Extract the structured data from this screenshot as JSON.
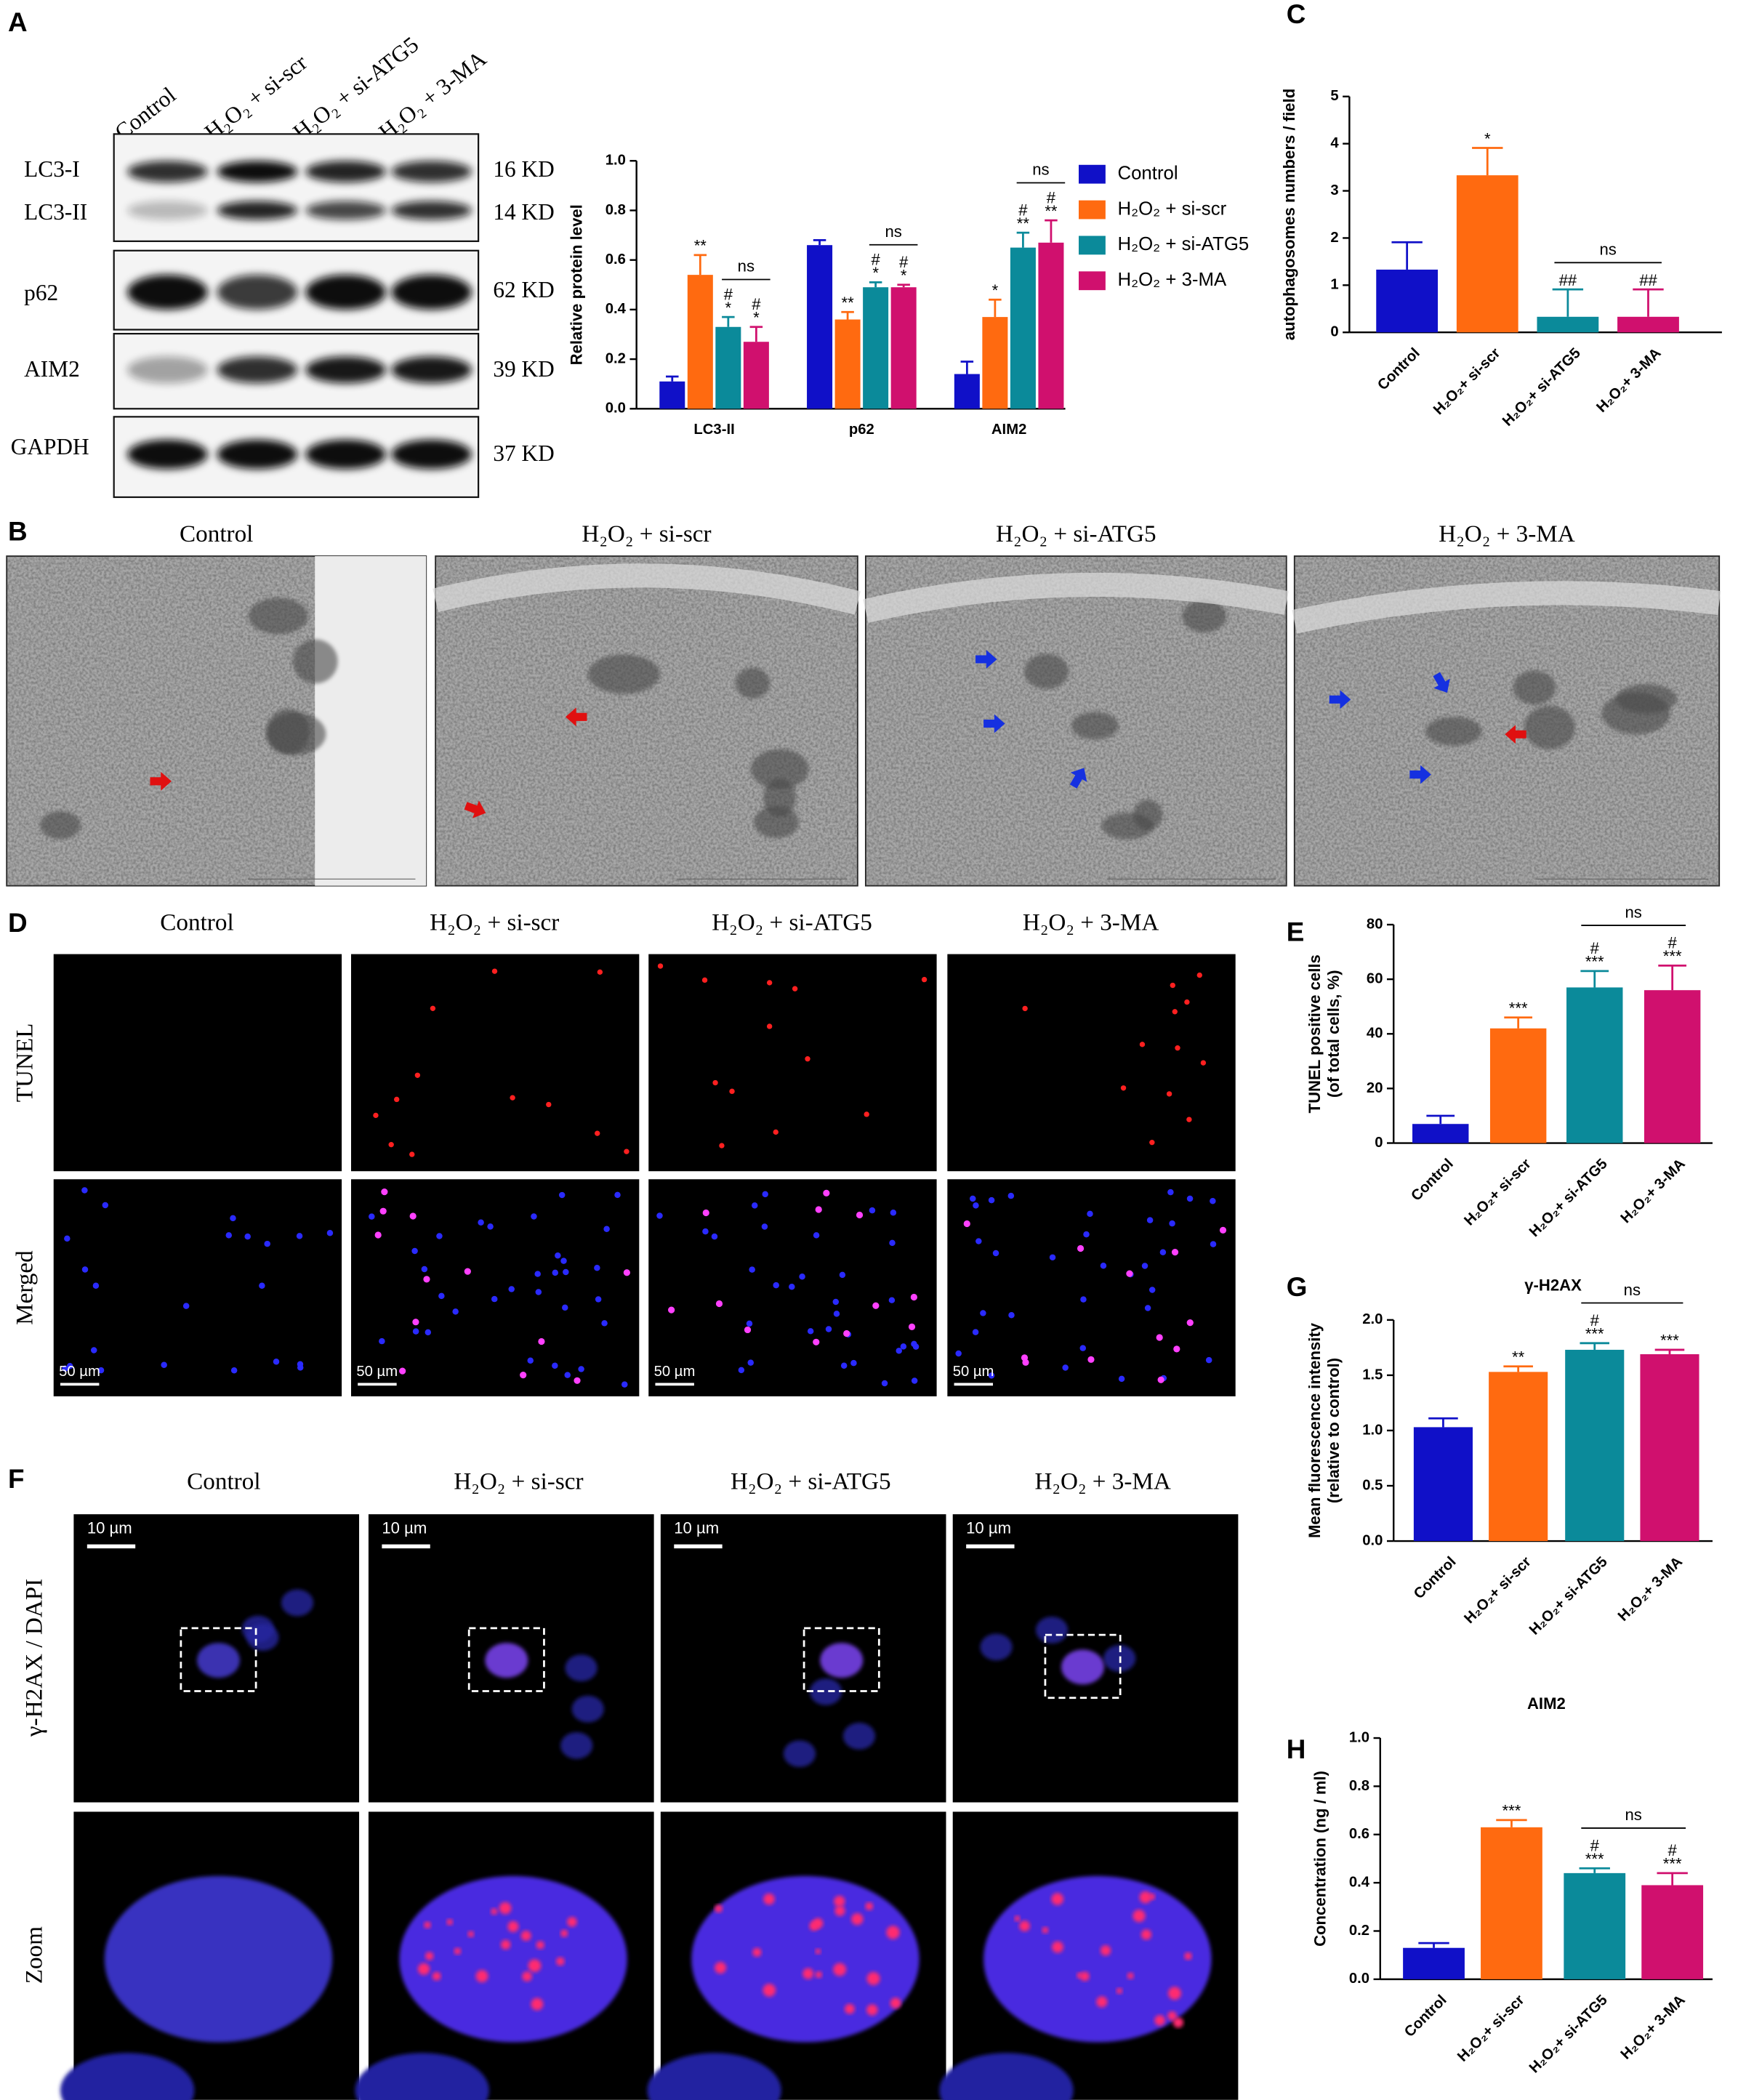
{
  "panels": {
    "A": {
      "letter": "A",
      "lanes": [
        "Control",
        "H₂O₂ + si-scr",
        "H₂O₂ + si-ATG5",
        "H₂O₂ + 3-MA"
      ],
      "proteins": [
        "LC3-I",
        "LC3-II",
        "p62",
        "AIM2",
        "GAPDH"
      ],
      "sizes": [
        "16 KD",
        "14 KD",
        "62 KD",
        "39 KD",
        "37 KD"
      ]
    },
    "B": {
      "letter": "B",
      "titles": [
        "Control",
        "H₂O₂ + si-scr",
        "H₂O₂ + si-ATG5",
        "H₂O₂ + 3-MA"
      ]
    },
    "D": {
      "letter": "D",
      "titles": [
        "Control",
        "H₂O₂ + si-scr",
        "H₂O₂ + si-ATG5",
        "H₂O₂ + 3-MA"
      ],
      "rows": [
        "TUNEL",
        "Merged"
      ],
      "scale_bar": "50 µm"
    },
    "F": {
      "letter": "F",
      "titles": [
        "Control",
        "H₂O₂ + si-scr",
        "H₂O₂ + si-ATG5",
        "H₂O₂ + 3-MA"
      ],
      "rows": [
        "γ-H2AX / DAPI",
        "Zoom"
      ],
      "scale_bar": "10 µm"
    }
  },
  "chart_data": [
    {
      "type": "grouped_bar",
      "ylabel": "Relative protein level",
      "categories": [
        "LC3-II",
        "p62",
        "AIM2"
      ],
      "series": [
        {
          "name": "Control",
          "color": "#1010c8",
          "values": [
            0.11,
            0.66,
            0.14
          ],
          "errors": [
            0.02,
            0.02,
            0.05
          ],
          "significance": [
            [],
            [],
            []
          ]
        },
        {
          "name": "H₂O₂ + si-scr",
          "color": "#ff6a10",
          "values": [
            0.54,
            0.36,
            0.37
          ],
          "errors": [
            0.08,
            0.03,
            0.07
          ],
          "significance": [
            [
              "**"
            ],
            [
              "**"
            ],
            [
              "*"
            ]
          ]
        },
        {
          "name": "H₂O₂ + si-ATG5",
          "color": "#0b8a9a",
          "values": [
            0.33,
            0.49,
            0.65
          ],
          "errors": [
            0.04,
            0.02,
            0.06
          ],
          "significance": [
            [
              "#",
              "*"
            ],
            [
              "#",
              "*"
            ],
            [
              "#",
              "**"
            ]
          ]
        },
        {
          "name": "H₂O₂ + 3-MA",
          "color": "#d0106e",
          "values": [
            0.27,
            0.49,
            0.67
          ],
          "errors": [
            0.06,
            0.01,
            0.09
          ],
          "significance": [
            [
              "#",
              "*"
            ],
            [
              "#",
              "*"
            ],
            [
              "#",
              "**"
            ]
          ]
        }
      ],
      "ns": [
        "ns",
        "ns",
        "ns"
      ],
      "ylim": [
        0,
        1
      ],
      "yticks": [
        {
          "value": 0,
          "label": "0.0"
        },
        0.2,
        0.4,
        0.6,
        0.8,
        {
          "value": 1,
          "label": "1.0"
        }
      ]
    },
    {
      "type": "bar",
      "panel": "C",
      "ylabel": "autophagosomes numbers / field",
      "categories": [
        "Control",
        "H₂O₂+ si-scr",
        "H₂O₂+ si-ATG5",
        "H₂O₂+ 3-MA"
      ],
      "values": [
        1.33,
        3.33,
        0.33,
        0.33
      ],
      "errors": [
        0.58,
        0.58,
        0.58,
        0.58
      ],
      "colors": [
        "#1010c8",
        "#ff6a10",
        "#0b8a9a",
        "#d0106e"
      ],
      "significance": [
        [],
        [
          "*"
        ],
        [
          "##"
        ],
        [
          "##"
        ]
      ],
      "ns": "ns",
      "ylim": [
        0,
        5
      ],
      "yticks": [
        0,
        1,
        2,
        3,
        4,
        5
      ]
    },
    {
      "type": "bar",
      "panel": "E",
      "ylabel": [
        "TUNEL positive cells",
        "(of total cells, %)"
      ],
      "categories": [
        "Control",
        "H₂O₂+ si-scr",
        "H₂O₂+ si-ATG5",
        "H₂O₂+ 3-MA"
      ],
      "values": [
        7,
        42,
        57,
        56
      ],
      "errors": [
        3,
        4,
        6,
        9
      ],
      "colors": [
        "#1010c8",
        "#ff6a10",
        "#0b8a9a",
        "#d0106e"
      ],
      "significance": [
        [],
        [
          "***"
        ],
        [
          "#",
          "***"
        ],
        [
          "#",
          "***"
        ]
      ],
      "ns": "ns",
      "ylim": [
        0,
        80
      ],
      "yticks": [
        0,
        20,
        40,
        60,
        80
      ]
    },
    {
      "type": "bar",
      "panel": "G",
      "title": "γ-H2AX",
      "ylabel": [
        "Mean fluorescence intensity",
        "(relative to control)"
      ],
      "categories": [
        "Control",
        "H₂O₂+ si-scr",
        "H₂O₂+ si-ATG5",
        "H₂O₂+ 3-MA"
      ],
      "values": [
        1.03,
        1.53,
        1.73,
        1.69
      ],
      "errors": [
        0.08,
        0.05,
        0.06,
        0.04
      ],
      "colors": [
        "#1010c8",
        "#ff6a10",
        "#0b8a9a",
        "#d0106e"
      ],
      "significance": [
        [],
        [
          "**"
        ],
        [
          "#",
          "***"
        ],
        [
          "***"
        ]
      ],
      "ns": "ns",
      "ylim": [
        0,
        2
      ],
      "yticks": [
        {
          "value": 0,
          "label": "0.0"
        },
        0.5,
        {
          "value": 1,
          "label": "1.0"
        },
        1.5,
        {
          "value": 2,
          "label": "2.0"
        }
      ]
    },
    {
      "type": "bar",
      "panel": "H",
      "title": "AIM2",
      "ylabel": "Concentration (ng / ml)",
      "categories": [
        "Control",
        "H₂O₂+ si-scr",
        "H₂O₂+ si-ATG5",
        "H₂O₂+ 3-MA"
      ],
      "values": [
        0.13,
        0.63,
        0.44,
        0.39
      ],
      "errors": [
        0.02,
        0.03,
        0.02,
        0.05
      ],
      "colors": [
        "#1010c8",
        "#ff6a10",
        "#0b8a9a",
        "#d0106e"
      ],
      "significance": [
        [],
        [
          "***"
        ],
        [
          "#",
          "***"
        ],
        [
          "#",
          "***"
        ]
      ],
      "ns": "ns",
      "ylim": [
        0,
        1
      ],
      "yticks": [
        {
          "value": 0,
          "label": "0.0"
        },
        0.2,
        0.4,
        0.6,
        0.8,
        {
          "value": 1,
          "label": "1.0"
        }
      ]
    }
  ]
}
